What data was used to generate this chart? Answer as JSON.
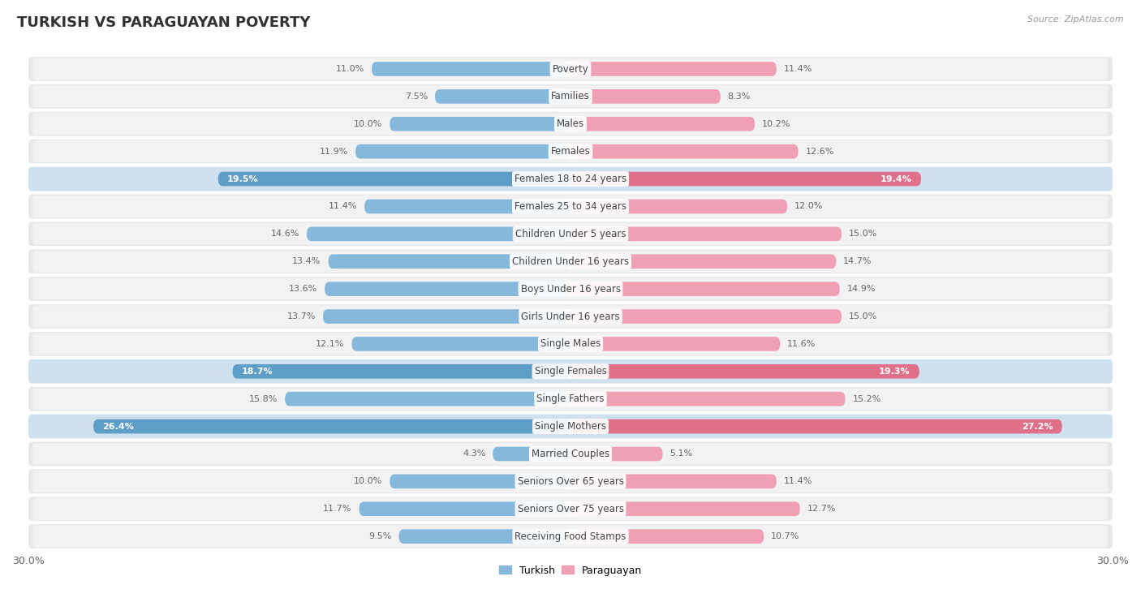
{
  "title": "TURKISH VS PARAGUAYAN POVERTY",
  "source": "Source: ZipAtlas.com",
  "categories": [
    "Poverty",
    "Families",
    "Males",
    "Females",
    "Females 18 to 24 years",
    "Females 25 to 34 years",
    "Children Under 5 years",
    "Children Under 16 years",
    "Boys Under 16 years",
    "Girls Under 16 years",
    "Single Males",
    "Single Females",
    "Single Fathers",
    "Single Mothers",
    "Married Couples",
    "Seniors Over 65 years",
    "Seniors Over 75 years",
    "Receiving Food Stamps"
  ],
  "turkish": [
    11.0,
    7.5,
    10.0,
    11.9,
    19.5,
    11.4,
    14.6,
    13.4,
    13.6,
    13.7,
    12.1,
    18.7,
    15.8,
    26.4,
    4.3,
    10.0,
    11.7,
    9.5
  ],
  "paraguayan": [
    11.4,
    8.3,
    10.2,
    12.6,
    19.4,
    12.0,
    15.0,
    14.7,
    14.9,
    15.0,
    11.6,
    19.3,
    15.2,
    27.2,
    5.1,
    11.4,
    12.7,
    10.7
  ],
  "turkish_color": "#85b8db",
  "paraguayan_color": "#f0a0b5",
  "turkish_highlight_color": "#5e9dc5",
  "paraguayan_highlight_color": "#e0708a",
  "row_bg_color": "#e8e8e8",
  "row_inner_bg": "#f2f2f2",
  "highlight_bg": "#cfe0ef",
  "max_val": 30.0,
  "bar_height": 0.52,
  "title_fontsize": 13,
  "label_fontsize": 8.5,
  "value_fontsize": 8,
  "legend_fontsize": 9,
  "background_color": "#ffffff",
  "highlight_indices": [
    4,
    11,
    13
  ]
}
